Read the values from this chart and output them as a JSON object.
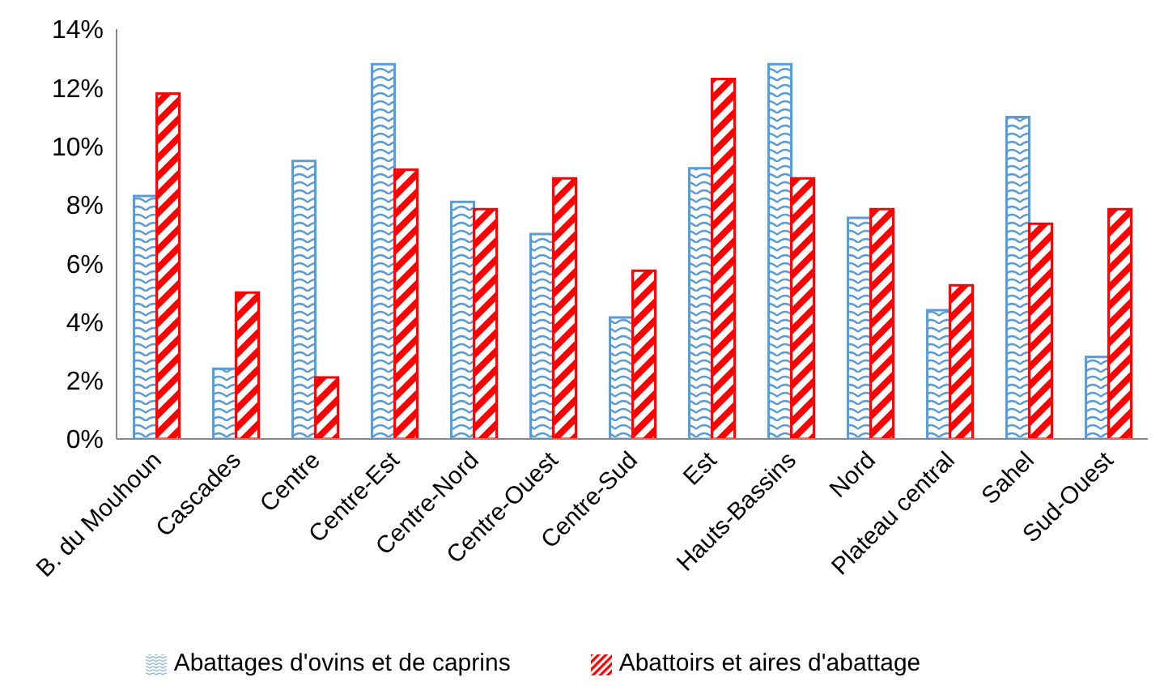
{
  "chart_data": {
    "type": "bar",
    "categories": [
      "B. du Mouhoun",
      "Cascades",
      "Centre",
      "Centre-Est",
      "Centre-Nord",
      "Centre-Ouest",
      "Centre-Sud",
      "Est",
      "Hauts-Bassins",
      "Nord",
      "Plateau central",
      "Sahel",
      "Sud-Ouest"
    ],
    "series": [
      {
        "name": "Abattages d'ovins et de caprins",
        "color": "#5b9bd5",
        "values": [
          8.3,
          2.4,
          9.5,
          12.8,
          8.1,
          7.0,
          4.15,
          9.25,
          12.8,
          7.55,
          4.4,
          11.0,
          2.8
        ]
      },
      {
        "name": "Abattoirs et aires d'abattage",
        "color": "#ff0000",
        "values": [
          11.8,
          5.0,
          2.1,
          9.2,
          7.85,
          8.9,
          5.75,
          12.3,
          8.9,
          7.85,
          5.25,
          7.35,
          7.85
        ]
      }
    ],
    "ylim": [
      0,
      14
    ],
    "yticks": [
      {
        "value": 0,
        "label": "0%"
      },
      {
        "value": 2,
        "label": "2%"
      },
      {
        "value": 4,
        "label": "4%"
      },
      {
        "value": 6,
        "label": "6%"
      },
      {
        "value": 8,
        "label": "8%"
      },
      {
        "value": 10,
        "label": "10%"
      },
      {
        "value": 12,
        "label": "12%"
      },
      {
        "value": 14,
        "label": "14%"
      }
    ],
    "grid": false,
    "legend": "bottom"
  }
}
